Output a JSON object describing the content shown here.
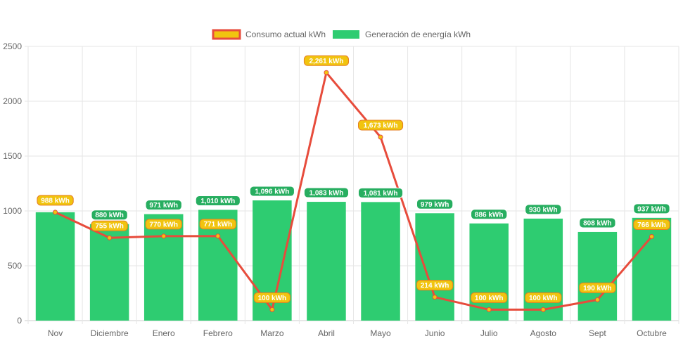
{
  "chart_data": {
    "type": "bar",
    "title": "",
    "xlabel": "",
    "ylabel": "",
    "ylim": [
      0,
      2500
    ],
    "yticks": [
      0,
      500,
      1000,
      1500,
      2000,
      2500
    ],
    "grid": true,
    "legend_position": "top",
    "categories": [
      "Nov",
      "Diciembre",
      "Enero",
      "Febrero",
      "Marzo",
      "Abril",
      "Mayo",
      "Junio",
      "Julio",
      "Agosto",
      "Sept",
      "Octubre"
    ],
    "series": [
      {
        "name": "Consumo actual kWh",
        "type": "line",
        "color": "#e74c3c",
        "fill": "#f1c40f",
        "values": [
          988,
          755,
          770,
          771,
          100,
          2261,
          1673,
          214,
          100,
          100,
          190,
          766
        ],
        "labels": [
          "988 kWh",
          "755 kWh",
          "770 kWh",
          "771 kWh",
          "100 kWh",
          "2,261 kWh",
          "1,673 kWh",
          "214 kWh",
          "100 kWh",
          "100 kWh",
          "190 kWh",
          "766 kWh"
        ]
      },
      {
        "name": "Generación de energía kWh",
        "type": "bar",
        "color": "#2ecc71",
        "values": [
          988,
          880,
          971,
          1010,
          1096,
          1083,
          1081,
          979,
          886,
          930,
          808,
          937
        ],
        "labels": [
          "",
          "880 kWh",
          "971 kWh",
          "1,010 kWh",
          "1,096 kWh",
          "1,083 kWh",
          "1,081 kWh",
          "979 kWh",
          "886 kWh",
          "930 kWh",
          "808 kWh",
          "937 kWh"
        ]
      }
    ]
  }
}
